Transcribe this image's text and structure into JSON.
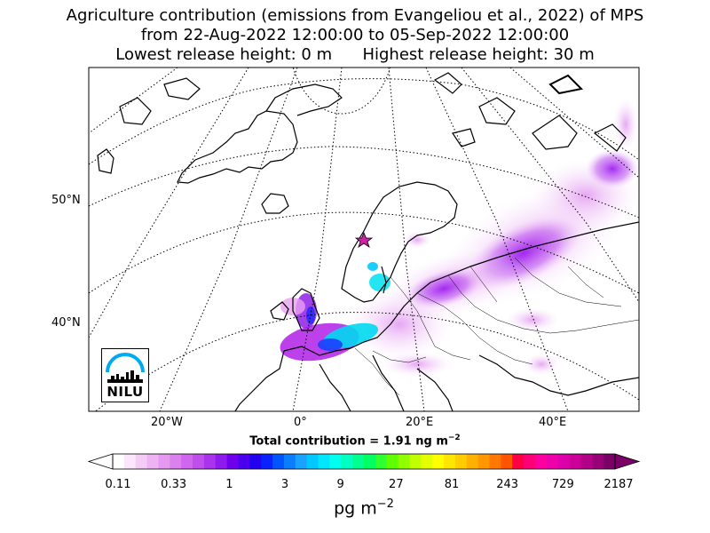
{
  "title": {
    "line1": "Agriculture contribution (emissions from Evangeliou et al., 2022) of MPS",
    "line2": "from 22-Aug-2022 12:00:00 to 05-Sep-2022 12:00:00",
    "line3": "Lowest release height: 0 m      Highest release height: 30 m"
  },
  "map": {
    "lat_labels": [
      "50°N",
      "40°N"
    ],
    "lon_labels": [
      "20°W",
      "0°",
      "20°E",
      "40°E"
    ],
    "colors": {
      "coast": "#000000",
      "grid": "#000000",
      "release_marker": "#cc22aa"
    }
  },
  "logo": {
    "text": "NILU",
    "arc_color": "#00aaee"
  },
  "total": {
    "prefix": "Total contribution = 1.91 ng m",
    "exponent": "−2"
  },
  "colorbar": {
    "labels": [
      "0.11",
      "0.33",
      "1",
      "3",
      "9",
      "27",
      "81",
      "243",
      "729",
      "2187"
    ],
    "unit_base": "pg m",
    "unit_exponent": "−2",
    "colors": [
      "#ffffff",
      "#fbe6fb",
      "#f5ccf5",
      "#efb3f3",
      "#e699f0",
      "#dc80ee",
      "#d066ee",
      "#c04dee",
      "#aa33ee",
      "#8f1aee",
      "#6e00ee",
      "#4a00ee",
      "#2300ee",
      "#0a22ff",
      "#0055ff",
      "#0b7dff",
      "#1aa2ff",
      "#00c8ff",
      "#00e6ff",
      "#00ffee",
      "#00ffc0",
      "#00ff90",
      "#00ff60",
      "#30ff30",
      "#60ff00",
      "#90ff00",
      "#c0ff00",
      "#e6ff00",
      "#ffff00",
      "#ffe600",
      "#ffcc00",
      "#ffb000",
      "#ff9600",
      "#ff7800",
      "#ff5500",
      "#ff0044",
      "#ff0077",
      "#ff00a0",
      "#ee00aa",
      "#dd00aa",
      "#cc0099",
      "#b30088",
      "#990077",
      "#7a0066"
    ]
  }
}
